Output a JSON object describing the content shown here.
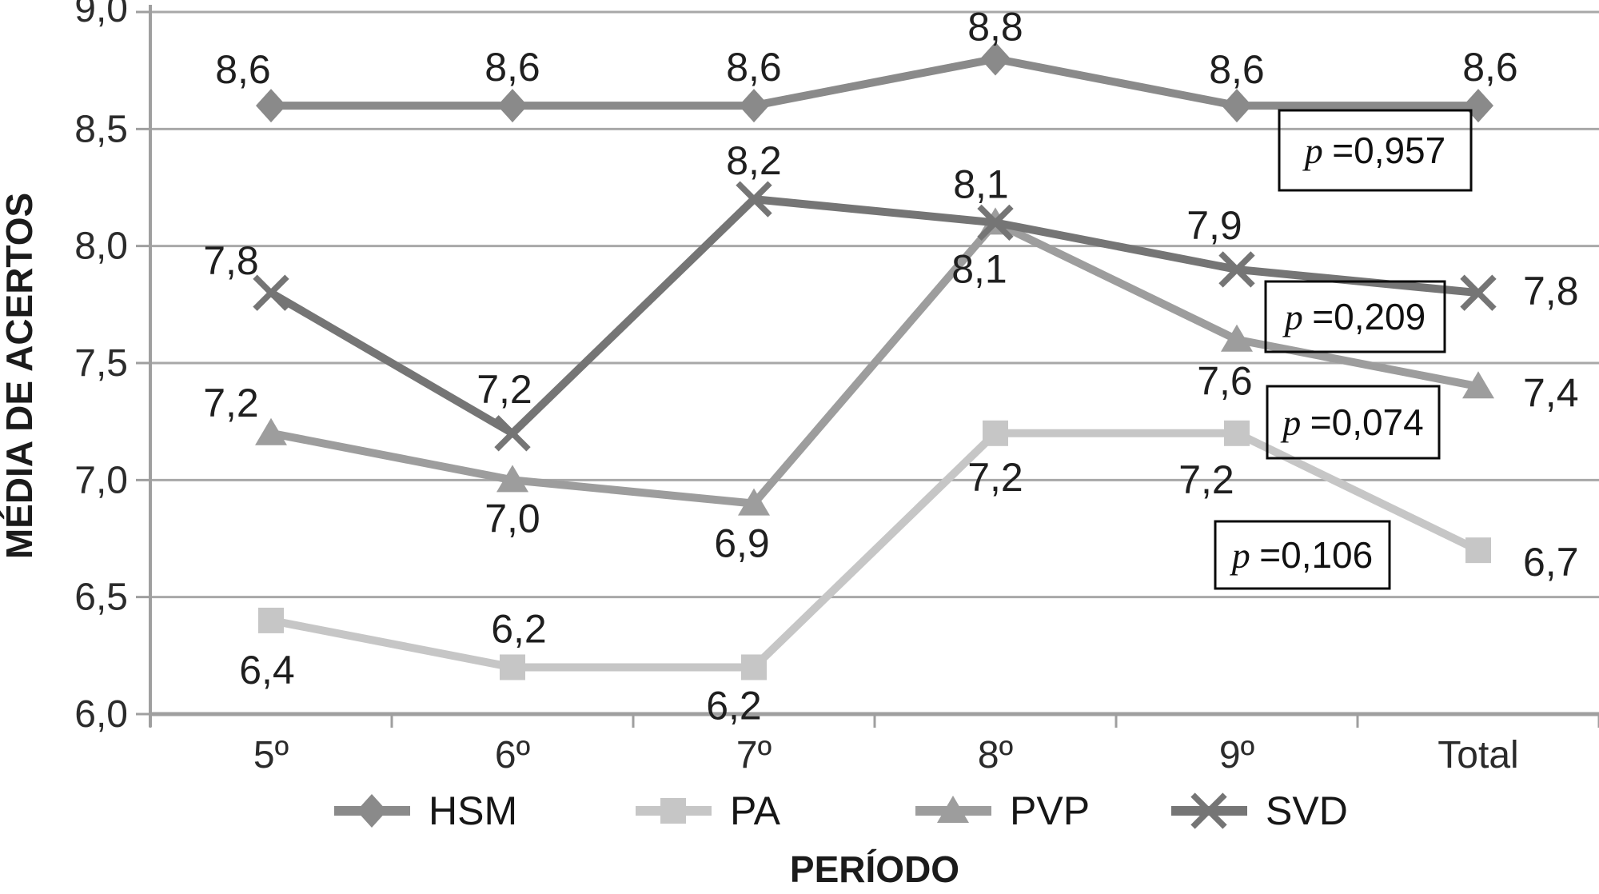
{
  "chart_data": {
    "type": "line",
    "title": "",
    "xlabel": "PERÍODO",
    "ylabel": "MÉDIA DE ACERTOS",
    "categories": [
      "5º",
      "6º",
      "7º",
      "8º",
      "9º",
      "Total"
    ],
    "y_ticks": [
      "9,0",
      "8,5",
      "8,0",
      "7,5",
      "7,0",
      "6,5",
      "6,0"
    ],
    "ylim": [
      6.0,
      9.0
    ],
    "y_step": 0.5,
    "grid": true,
    "legend_position": "bottom",
    "legend_order": [
      "HSM",
      "PA",
      "PVP",
      "SVD"
    ],
    "colors": {
      "grid": "#a8a8a8",
      "axis": "#9f9f9f",
      "label_text": "#1f1f1f"
    },
    "series": [
      {
        "name": "HSM",
        "marker": "diamond",
        "color": "#8a8a8a",
        "values": [
          8.6,
          8.6,
          8.6,
          8.8,
          8.6,
          8.6
        ],
        "labels": [
          "8,6",
          "8,6",
          "8,6",
          "8,8",
          "8,6",
          "8,6"
        ],
        "p_value": "p =0,957"
      },
      {
        "name": "PA",
        "marker": "square",
        "color": "#c6c6c6",
        "values": [
          6.4,
          6.2,
          6.2,
          7.2,
          7.2,
          6.7
        ],
        "labels": [
          "6,4",
          "6,2",
          "6,2",
          "7,2",
          "7,2",
          "6,7"
        ],
        "p_value": "p =0,106"
      },
      {
        "name": "PVP",
        "marker": "triangle",
        "color": "#9d9d9d",
        "values": [
          7.2,
          7.0,
          6.9,
          8.1,
          7.6,
          7.4
        ],
        "labels": [
          "7,2",
          "7,0",
          "6,9",
          "8,1",
          "7,6",
          "7,4"
        ],
        "p_value": "p =0,074"
      },
      {
        "name": "SVD",
        "marker": "x",
        "color": "#757575",
        "values": [
          7.8,
          7.2,
          8.2,
          8.1,
          7.9,
          7.8
        ],
        "labels": [
          "7,8",
          "7,2",
          "8,2",
          "8,1",
          "7,9",
          "7,8"
        ],
        "p_value": "p =0,209"
      }
    ],
    "annotations": [
      {
        "text": "p =0,957",
        "series": "HSM"
      },
      {
        "text": "p =0,209",
        "series": "SVD"
      },
      {
        "text": "p =0,074",
        "series": "PVP"
      },
      {
        "text": "p =0,106",
        "series": "PA"
      }
    ]
  }
}
